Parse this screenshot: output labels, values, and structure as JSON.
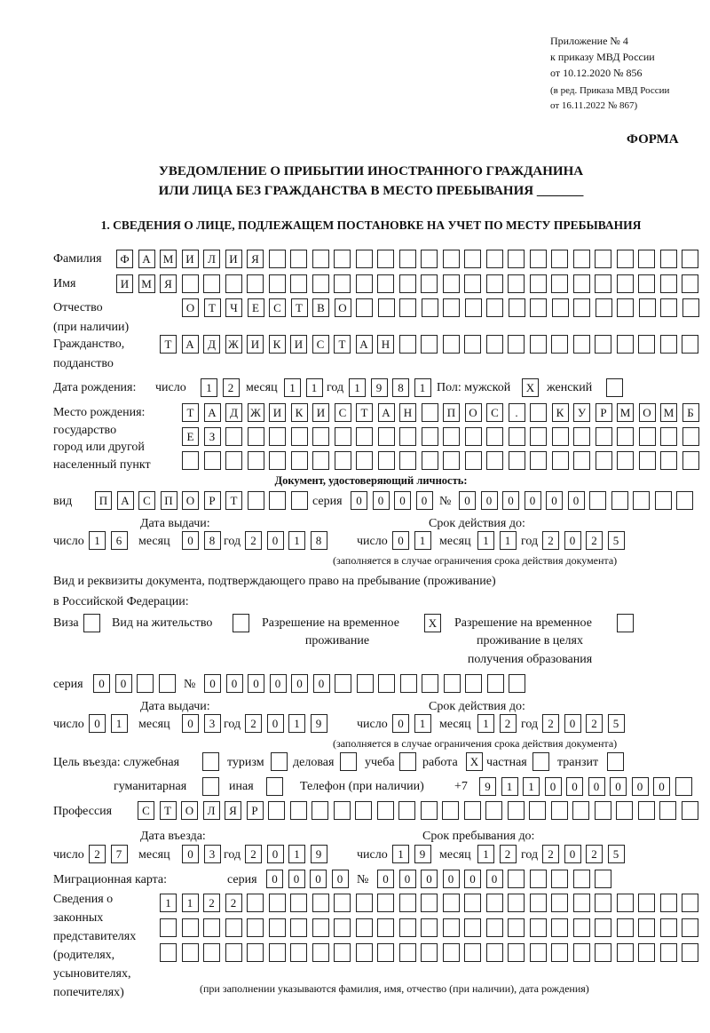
{
  "header": {
    "line1": "Приложение № 4",
    "line2": "к приказу МВД России",
    "line3": "от 10.12.2020 № 856",
    "line4": "(в ред. Приказа МВД России",
    "line5": "от 16.11.2022 № 867)",
    "forma": "ФОРМА"
  },
  "title": {
    "line1": "УВЕДОМЛЕНИЕ О ПРИБЫТИИ ИНОСТРАННОГО ГРАЖДАНИНА",
    "line2": "ИЛИ ЛИЦА БЕЗ ГРАЖДАНСТВА В МЕСТО ПРЕБЫВАНИЯ _______"
  },
  "section1": "1. СВЕДЕНИЯ О ЛИЦЕ, ПОДЛЕЖАЩЕМ ПОСТАНОВКЕ НА УЧЕТ ПО МЕСТУ ПРЕБЫВАНИЯ",
  "labels": {
    "surname": "Фамилия",
    "name": "Имя",
    "patronymic": "Отчество",
    "patronymic2": "(при наличии)",
    "citizenship": "Гражданство,",
    "citizenship2": "подданство",
    "birth_date": "Дата рождения:",
    "day": "число",
    "month": "месяц",
    "year": "год",
    "sex": "Пол: мужской",
    "female": "женский",
    "birth_place1": "Место рождения:",
    "birth_place2": "государство",
    "birth_place3": "город или другой",
    "birth_place4": "населенный пункт",
    "id_doc": "Документ, удостоверяющий личность:",
    "kind": "вид",
    "series": "серия",
    "number": "№",
    "issue_date": "Дата выдачи:",
    "valid_until": "Срок действия до:",
    "note_validity": "(заполняется в случае ограничения срока действия документа)",
    "right_doc1": "Вид и реквизиты документа, подтверждающего право на пребывание (проживание)",
    "right_doc2": "в Российской Федерации:",
    "visa": "Виза",
    "residence": "Вид на жительство",
    "trp": "Разрешение на временное",
    "trp2": "проживание",
    "trp_edu": "Разрешение на временное",
    "trp_edu2": "проживание в целях",
    "trp_edu3": "получения образования",
    "purpose": "Цель въезда: служебная",
    "tourism": "туризм",
    "business": "деловая",
    "study": "учеба",
    "work": "работа",
    "private": "частная",
    "transit": "транзит",
    "humanitarian": "гуманитарная",
    "other": "иная",
    "phone": "Телефон (при наличии)",
    "phone_prefix": "+7",
    "profession": "Профессия",
    "entry_date": "Дата въезда:",
    "stay_until": "Срок пребывания до:",
    "migration_card": "Миграционная карта:",
    "reps1": "Сведения о",
    "reps2": "законных",
    "reps3": "представителях",
    "reps4": "(родителях,",
    "reps5": "усыновителях,",
    "reps6": "попечителях)",
    "reps_note": "(при заполнении указываются фамилия, имя, отчество (при наличии), дата рождения)"
  },
  "values": {
    "surname": [
      "Ф",
      "А",
      "М",
      "И",
      "Л",
      "И",
      "Я"
    ],
    "name": [
      "И",
      "М",
      "Я"
    ],
    "patronymic": [
      "О",
      "Т",
      "Ч",
      "Е",
      "С",
      "Т",
      "В",
      "О"
    ],
    "citizenship": [
      "Т",
      "А",
      "Д",
      "Ж",
      "И",
      "К",
      "И",
      "С",
      "Т",
      "А",
      "Н"
    ],
    "birth_day": [
      "1",
      "2"
    ],
    "birth_month": [
      "1",
      "1"
    ],
    "birth_year": [
      "1",
      "9",
      "8",
      "1"
    ],
    "sex_male": [
      "X"
    ],
    "sex_female": [
      ""
    ],
    "birth_place1": [
      "Т",
      "А",
      "Д",
      "Ж",
      "И",
      "К",
      "И",
      "С",
      "Т",
      "А",
      "Н",
      "",
      "П",
      "О",
      "С",
      ".",
      "",
      "К",
      "У",
      "Р",
      "М",
      "О",
      "М",
      "Б"
    ],
    "birth_place2": [
      "Е",
      "З"
    ],
    "birth_place3": [],
    "doc_kind": [
      "П",
      "А",
      "С",
      "П",
      "О",
      "Р",
      "Т"
    ],
    "doc_series": [
      "0",
      "0",
      "0",
      "0"
    ],
    "doc_number": [
      "0",
      "0",
      "0",
      "0",
      "0",
      "0"
    ],
    "doc_issue_day": [
      "1",
      "6"
    ],
    "doc_issue_month": [
      "0",
      "8"
    ],
    "doc_issue_year": [
      "2",
      "0",
      "1",
      "8"
    ],
    "doc_valid_day": [
      "0",
      "1"
    ],
    "doc_valid_month": [
      "1",
      "1"
    ],
    "doc_valid_year": [
      "2",
      "0",
      "2",
      "5"
    ],
    "visa": [
      ""
    ],
    "residence": [
      ""
    ],
    "trp": [
      "X"
    ],
    "trp_edu": [
      ""
    ],
    "right_series": [
      "0",
      "0"
    ],
    "right_number": [
      "0",
      "0",
      "0",
      "0",
      "0",
      "0"
    ],
    "right_issue_day": [
      "0",
      "1"
    ],
    "right_issue_month": [
      "0",
      "3"
    ],
    "right_issue_year": [
      "2",
      "0",
      "1",
      "9"
    ],
    "right_valid_day": [
      "0",
      "1"
    ],
    "right_valid_month": [
      "1",
      "2"
    ],
    "right_valid_year": [
      "2",
      "0",
      "2",
      "5"
    ],
    "purpose_official": [
      ""
    ],
    "purpose_tourism": [
      ""
    ],
    "purpose_business": [
      ""
    ],
    "purpose_study": [
      ""
    ],
    "purpose_work": [
      "X"
    ],
    "purpose_private": [
      ""
    ],
    "purpose_transit": [
      ""
    ],
    "purpose_humanitarian": [
      ""
    ],
    "purpose_other": [
      ""
    ],
    "phone": [
      "9",
      "1",
      "1",
      "0",
      "0",
      "0",
      "0",
      "0",
      "0"
    ],
    "profession": [
      "С",
      "Т",
      "О",
      "Л",
      "Я",
      "Р"
    ],
    "entry_day": [
      "2",
      "7"
    ],
    "entry_month": [
      "0",
      "3"
    ],
    "entry_year": [
      "2",
      "0",
      "1",
      "9"
    ],
    "stay_day": [
      "1",
      "9"
    ],
    "stay_month": [
      "1",
      "2"
    ],
    "stay_year": [
      "2",
      "0",
      "2",
      "5"
    ],
    "mc_series": [
      "0",
      "0",
      "0",
      "0"
    ],
    "mc_number": [
      "0",
      "0",
      "0",
      "0",
      "0",
      "0"
    ],
    "reps1": [
      "1",
      "1",
      "2",
      "2"
    ],
    "reps2": [],
    "reps3": []
  }
}
